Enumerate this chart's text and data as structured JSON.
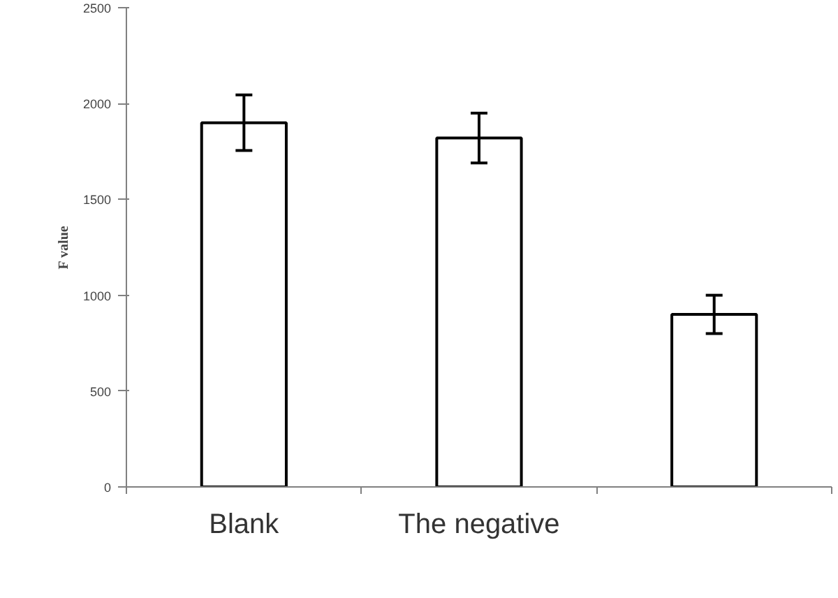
{
  "chart_data": {
    "type": "bar",
    "ylabel": "F value",
    "categories": [
      "Blank",
      "The negative",
      null
    ],
    "values": [
      1900,
      1820,
      900
    ],
    "errors": [
      145,
      130,
      100
    ],
    "color": "#ffffff",
    "ylim": [
      0,
      2500
    ],
    "yticks": [
      0,
      500,
      1000,
      1500,
      2000,
      2500
    ],
    "grid": false
  }
}
